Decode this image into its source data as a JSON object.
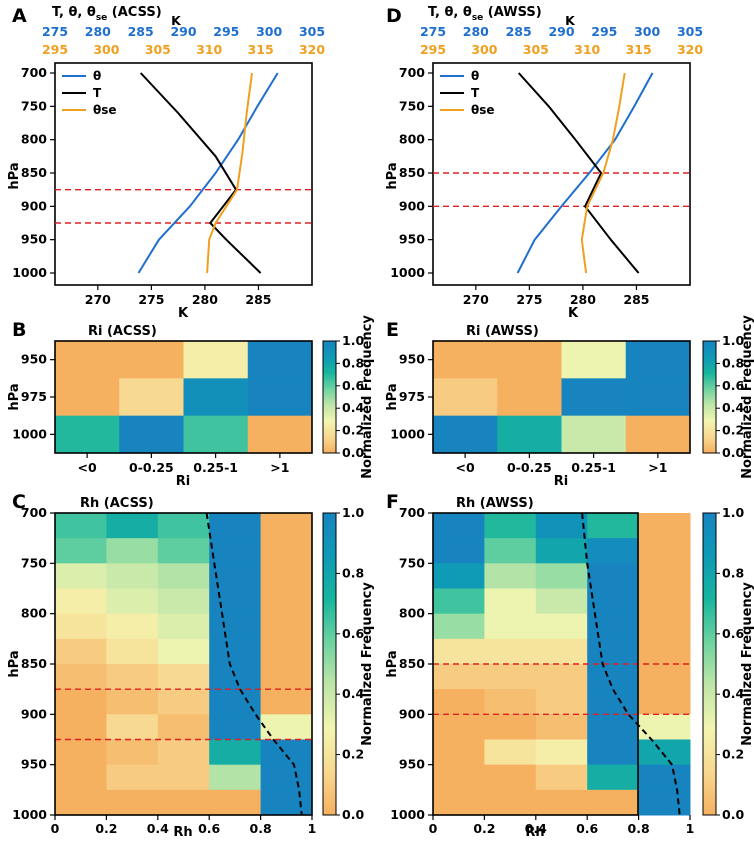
{
  "colors": {
    "theta": "#1f6fce",
    "T": "#000000",
    "theta_se": "#f0a020",
    "dashed_red": "#e02020",
    "cmap": [
      "#f5b060",
      "#f8d890",
      "#f2f5b0",
      "#bfe6a8",
      "#6fd3a0",
      "#19b59e",
      "#0e9ab6",
      "#1784c0"
    ]
  },
  "colorbar": {
    "label": "Normalized Frequency",
    "ticks": [
      "0.0",
      "0.2",
      "0.4",
      "0.6",
      "0.8",
      "1.0"
    ]
  },
  "chart_data": [
    {
      "id": "A",
      "panel_label": "A",
      "type": "line",
      "title": "T, θ, θse (ACSS)",
      "title_main": "T, θ, θ",
      "title_sub": "se",
      "title_tail": " (ACSS)",
      "ylabel": "hPa",
      "xlabel": "K",
      "top_axis_label": "K",
      "ylim": [
        1000,
        700
      ],
      "xlim": [
        266,
        290
      ],
      "bottom_ticks": [
        "270",
        "275",
        "280",
        "285"
      ],
      "blue_ticks": [
        "275",
        "280",
        "285",
        "290",
        "295",
        "300",
        "305"
      ],
      "orange_ticks": [
        "295",
        "300",
        "305",
        "310",
        "315",
        "320"
      ],
      "y_ticks": [
        "700",
        "750",
        "800",
        "850",
        "900",
        "950",
        "1000"
      ],
      "legend": [
        {
          "key": "theta",
          "label": "θ"
        },
        {
          "key": "T",
          "label": "T"
        },
        {
          "key": "theta_se",
          "label": "θse"
        }
      ],
      "series": [
        {
          "name": "θ",
          "p": [
            1000,
            950,
            900,
            850,
            800,
            750,
            700
          ],
          "x": [
            273.8,
            275.7,
            278.6,
            281.0,
            283.1,
            284.9,
            286.8
          ]
        },
        {
          "name": "T",
          "p": [
            1000,
            950,
            925,
            875,
            825,
            760,
            700
          ],
          "x": [
            285.2,
            282.0,
            280.5,
            282.9,
            281.0,
            277.5,
            274.0
          ]
        },
        {
          "name": "θse",
          "p": [
            1000,
            950,
            925,
            875,
            820,
            760,
            700
          ],
          "x": [
            280.2,
            280.4,
            281.0,
            283.0,
            283.5,
            283.9,
            284.4
          ]
        }
      ],
      "dashed_levels": [
        875,
        925
      ]
    },
    {
      "id": "D",
      "panel_label": "D",
      "type": "line",
      "title": "T, θ, θse (AWSS)",
      "title_main": "T, θ, θ",
      "title_sub": "se",
      "title_tail": " (AWSS)",
      "ylabel": "hPa",
      "xlabel": "K",
      "top_axis_label": "K",
      "ylim": [
        1000,
        700
      ],
      "xlim": [
        266,
        290
      ],
      "bottom_ticks": [
        "270",
        "275",
        "280",
        "285"
      ],
      "blue_ticks": [
        "275",
        "280",
        "285",
        "290",
        "295",
        "300",
        "305"
      ],
      "orange_ticks": [
        "295",
        "300",
        "305",
        "310",
        "315",
        "320"
      ],
      "y_ticks": [
        "700",
        "750",
        "800",
        "850",
        "900",
        "950",
        "1000"
      ],
      "legend": [
        {
          "key": "theta",
          "label": "θ"
        },
        {
          "key": "T",
          "label": "T"
        },
        {
          "key": "theta_se",
          "label": "θse"
        }
      ],
      "series": [
        {
          "name": "θ",
          "p": [
            1000,
            950,
            900,
            850,
            800,
            750,
            700
          ],
          "x": [
            273.9,
            275.5,
            278.0,
            280.6,
            283.0,
            284.8,
            286.5
          ]
        },
        {
          "name": "T",
          "p": [
            1000,
            950,
            900,
            850,
            800,
            750,
            700
          ],
          "x": [
            285.2,
            282.6,
            280.2,
            281.7,
            279.3,
            276.8,
            274.0
          ]
        },
        {
          "name": "θse",
          "p": [
            1000,
            950,
            900,
            850,
            800,
            750,
            700
          ],
          "x": [
            280.3,
            279.9,
            280.4,
            281.9,
            282.8,
            283.4,
            283.9
          ]
        }
      ],
      "dashed_levels": [
        850,
        900
      ]
    },
    {
      "id": "B",
      "panel_label": "B",
      "type": "heatmap",
      "title": "Ri (ACSS)",
      "xlabel": "Ri",
      "ylabel": "hPa",
      "x_categories": [
        "<0",
        "0-0.25",
        "0.25-1",
        ">1"
      ],
      "y_categories": [
        "950",
        "975",
        "1000"
      ],
      "values": [
        [
          0.0,
          0.0,
          0.25,
          1.0
        ],
        [
          0.0,
          0.15,
          0.92,
          1.0
        ],
        [
          0.7,
          1.0,
          0.65,
          0.0
        ]
      ]
    },
    {
      "id": "E",
      "panel_label": "E",
      "type": "heatmap",
      "title": "Ri (AWSS)",
      "xlabel": "Ri",
      "ylabel": "hPa",
      "x_categories": [
        "<0",
        "0-0.25",
        "0.25-1",
        ">1"
      ],
      "y_categories": [
        "950",
        "975",
        "1000"
      ],
      "values": [
        [
          0.0,
          0.0,
          0.3,
          1.0
        ],
        [
          0.1,
          0.0,
          1.0,
          1.0
        ],
        [
          1.0,
          0.75,
          0.4,
          0.0
        ]
      ]
    },
    {
      "id": "C",
      "panel_label": "C",
      "type": "heatmap",
      "title": "Rh (ACSS)",
      "xlabel": "Rh",
      "ylabel": "hPa",
      "x_ticks": [
        "0",
        "0.2",
        "0.4",
        "0.6",
        "0.8",
        "1"
      ],
      "y_ticks": [
        "700",
        "750",
        "800",
        "850",
        "900",
        "950",
        "1000"
      ],
      "rh_bins": [
        0,
        0.2,
        0.4,
        0.6,
        0.8,
        1.0
      ],
      "p_edges": [
        700,
        725,
        750,
        775,
        800,
        825,
        850,
        875,
        900,
        925,
        950,
        975,
        1000
      ],
      "values": [
        [
          0.65,
          0.75,
          0.65,
          1.0,
          0.0
        ],
        [
          0.6,
          0.5,
          0.6,
          1.0,
          0.0
        ],
        [
          0.35,
          0.4,
          0.45,
          1.0,
          0.0
        ],
        [
          0.25,
          0.35,
          0.4,
          1.0,
          0.0
        ],
        [
          0.2,
          0.25,
          0.35,
          1.0,
          0.0
        ],
        [
          0.1,
          0.2,
          0.3,
          1.0,
          0.0
        ],
        [
          0.05,
          0.1,
          0.15,
          1.0,
          0.0
        ],
        [
          0.0,
          0.05,
          0.1,
          1.0,
          0.0
        ],
        [
          0.0,
          0.15,
          0.05,
          1.0,
          0.3
        ],
        [
          0.0,
          0.05,
          0.1,
          0.75,
          1.0
        ],
        [
          0.0,
          0.1,
          0.1,
          0.45,
          1.0
        ],
        [
          0.0,
          0.0,
          0.0,
          0.0,
          1.0
        ]
      ],
      "mean_rh_line": {
        "rh": [
          0.59,
          0.62,
          0.65,
          0.68,
          0.72,
          0.78,
          0.85,
          0.93,
          0.95,
          0.96
        ],
        "p": [
          700,
          750,
          800,
          850,
          875,
          900,
          925,
          950,
          975,
          1000
        ]
      },
      "dashed_levels": [
        875,
        925
      ]
    },
    {
      "id": "F",
      "panel_label": "F",
      "type": "heatmap",
      "title": "Rh (AWSS)",
      "xlabel": "Rh",
      "ylabel": "hPa",
      "x_ticks": [
        "0",
        "0.2",
        "0.4",
        "0.6",
        "0.8",
        "1"
      ],
      "y_ticks": [
        "700",
        "750",
        "800",
        "850",
        "900",
        "950",
        "1000"
      ],
      "rh_bins": [
        0,
        0.2,
        0.4,
        0.6,
        0.8,
        1.0
      ],
      "p_edges": [
        700,
        725,
        750,
        775,
        800,
        825,
        850,
        875,
        900,
        925,
        950,
        975,
        1000
      ],
      "values": [
        [
          1.0,
          0.7,
          0.9,
          0.7,
          0.0
        ],
        [
          1.0,
          0.6,
          0.8,
          0.95,
          0.0
        ],
        [
          0.85,
          0.45,
          0.5,
          1.0,
          0.0
        ],
        [
          0.65,
          0.3,
          0.4,
          1.0,
          0.0
        ],
        [
          0.5,
          0.3,
          0.3,
          1.0,
          0.0
        ],
        [
          0.2,
          0.2,
          0.2,
          1.0,
          0.0
        ],
        [
          0.1,
          0.1,
          0.1,
          1.0,
          0.0
        ],
        [
          0.0,
          0.05,
          0.1,
          1.0,
          0.0
        ],
        [
          0.0,
          0.0,
          0.05,
          1.0,
          0.3
        ],
        [
          0.0,
          0.2,
          0.25,
          1.0,
          0.8
        ],
        [
          0.0,
          0.0,
          0.1,
          0.75,
          1.0
        ],
        [
          0.0,
          0.0,
          0.0,
          0.0,
          1.0
        ]
      ],
      "mean_rh_line": {
        "rh": [
          0.58,
          0.6,
          0.63,
          0.66,
          0.7,
          0.76,
          0.85,
          0.93,
          0.95,
          0.96
        ],
        "p": [
          700,
          750,
          800,
          850,
          875,
          900,
          925,
          950,
          975,
          1000
        ]
      },
      "dashed_levels": [
        850,
        900
      ]
    }
  ]
}
